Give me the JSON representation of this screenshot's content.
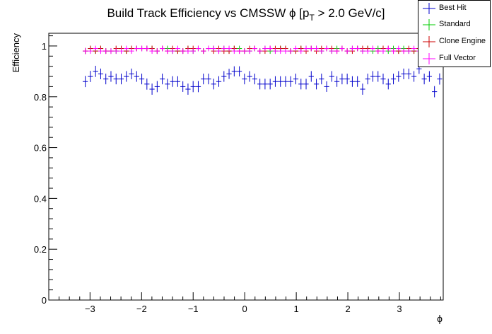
{
  "chart_data": {
    "type": "scatter",
    "title_main": "Build Track Efficiency vs CMSSW ",
    "title_phi": "ϕ",
    "title_bracket_open": " [p",
    "title_subscript": "T",
    "title_rest": " > 2.0 GeV/c]",
    "xlabel": "ϕ",
    "ylabel": "Efficiency",
    "xlim": [
      -3.8,
      3.85
    ],
    "ylim": [
      0,
      1.05
    ],
    "x_ticks": [
      -3,
      -2,
      -1,
      0,
      1,
      2,
      3
    ],
    "x_tick_labels": [
      "−3",
      "−2",
      "−1",
      "0",
      "1",
      "2",
      "3"
    ],
    "y_ticks": [
      0,
      0.2,
      0.4,
      0.6,
      0.8,
      1
    ],
    "y_tick_labels": [
      "0",
      "0.2",
      "0.4",
      "0.6",
      "0.8",
      "1"
    ],
    "bin_width": 0.0996,
    "x_start": -3.092,
    "legend_position": "top-right",
    "series": [
      {
        "name": "Best Hit",
        "color": "#0000cc",
        "values": [
          0.86,
          0.88,
          0.9,
          0.89,
          0.87,
          0.88,
          0.87,
          0.87,
          0.88,
          0.89,
          0.88,
          0.87,
          0.85,
          0.83,
          0.84,
          0.87,
          0.85,
          0.86,
          0.86,
          0.84,
          0.83,
          0.84,
          0.84,
          0.87,
          0.87,
          0.85,
          0.86,
          0.88,
          0.89,
          0.9,
          0.9,
          0.87,
          0.88,
          0.87,
          0.85,
          0.85,
          0.85,
          0.86,
          0.86,
          0.86,
          0.86,
          0.87,
          0.85,
          0.85,
          0.88,
          0.85,
          0.87,
          0.84,
          0.88,
          0.86,
          0.87,
          0.87,
          0.86,
          0.86,
          0.83,
          0.87,
          0.88,
          0.88,
          0.87,
          0.85,
          0.87,
          0.88,
          0.89,
          0.89,
          0.88,
          0.91,
          0.87,
          0.88,
          0.82,
          0.87
        ],
        "errors": [
          0.022,
          0.022,
          0.022,
          0.021,
          0.021,
          0.021,
          0.021,
          0.021,
          0.021,
          0.021,
          0.021,
          0.021,
          0.022,
          0.022,
          0.022,
          0.021,
          0.021,
          0.021,
          0.021,
          0.021,
          0.022,
          0.022,
          0.022,
          0.021,
          0.021,
          0.021,
          0.021,
          0.021,
          0.02,
          0.02,
          0.02,
          0.021,
          0.021,
          0.021,
          0.021,
          0.021,
          0.021,
          0.021,
          0.021,
          0.021,
          0.021,
          0.021,
          0.021,
          0.021,
          0.021,
          0.021,
          0.021,
          0.021,
          0.021,
          0.021,
          0.021,
          0.021,
          0.021,
          0.021,
          0.022,
          0.021,
          0.021,
          0.021,
          0.021,
          0.021,
          0.021,
          0.021,
          0.021,
          0.021,
          0.021,
          0.02,
          0.021,
          0.021,
          0.022,
          0.022
        ]
      },
      {
        "name": "Standard",
        "color": "#00cc00",
        "values": [
          0.98,
          0.99,
          0.98,
          0.99,
          0.98,
          0.98,
          0.98,
          0.99,
          0.98,
          0.99,
          0.99,
          0.99,
          0.99,
          0.99,
          0.98,
          0.99,
          0.99,
          0.98,
          0.98,
          0.98,
          0.99,
          0.98,
          0.99,
          0.98,
          0.99,
          0.99,
          0.98,
          0.99,
          0.98,
          0.99,
          0.99,
          0.98,
          0.98,
          0.99,
          0.98,
          0.99,
          0.98,
          0.98,
          0.99,
          0.99,
          0.98,
          0.98,
          0.99,
          0.99,
          0.99,
          0.99,
          0.98,
          0.99,
          0.98,
          0.99,
          0.99,
          0.98,
          0.99,
          0.99,
          0.98,
          0.99,
          0.98,
          0.99,
          0.99,
          0.98,
          0.99,
          0.98,
          0.99,
          0.98,
          0.98,
          0.99,
          0.98,
          0.99,
          0.99,
          0.99
        ],
        "errors": [
          0.012,
          0.011,
          0.011,
          0.011,
          0.011,
          0.011,
          0.011,
          0.011,
          0.011,
          0.011,
          0.011,
          0.011,
          0.011,
          0.011,
          0.011,
          0.011,
          0.011,
          0.011,
          0.011,
          0.011,
          0.011,
          0.011,
          0.011,
          0.011,
          0.011,
          0.011,
          0.011,
          0.011,
          0.011,
          0.011,
          0.011,
          0.011,
          0.011,
          0.011,
          0.011,
          0.011,
          0.011,
          0.011,
          0.011,
          0.011,
          0.011,
          0.011,
          0.011,
          0.011,
          0.011,
          0.011,
          0.011,
          0.011,
          0.011,
          0.011,
          0.011,
          0.011,
          0.011,
          0.011,
          0.011,
          0.011,
          0.011,
          0.011,
          0.011,
          0.011,
          0.011,
          0.011,
          0.011,
          0.011,
          0.011,
          0.011,
          0.011,
          0.011,
          0.011,
          0.011
        ]
      },
      {
        "name": "Clone Engine",
        "color": "#cc0000",
        "values": [
          0.98,
          0.99,
          0.98,
          0.99,
          0.98,
          0.98,
          0.99,
          0.99,
          0.98,
          0.99,
          0.99,
          0.99,
          0.99,
          0.99,
          0.98,
          0.99,
          0.98,
          0.99,
          0.98,
          0.98,
          0.99,
          0.99,
          0.99,
          0.98,
          0.99,
          0.98,
          0.99,
          0.98,
          0.98,
          0.99,
          0.98,
          0.98,
          0.99,
          0.99,
          0.98,
          0.98,
          0.99,
          0.99,
          0.99,
          0.99,
          0.98,
          0.98,
          0.99,
          0.98,
          0.99,
          0.98,
          0.99,
          0.99,
          0.99,
          0.98,
          0.99,
          0.98,
          0.98,
          0.99,
          0.99,
          0.99,
          0.99,
          0.98,
          0.99,
          0.99,
          0.98,
          0.98,
          0.98,
          0.99,
          0.98,
          0.99,
          0.99,
          0.98,
          0.99,
          0.99
        ],
        "errors": [
          0.012,
          0.011,
          0.011,
          0.011,
          0.011,
          0.011,
          0.011,
          0.011,
          0.011,
          0.011,
          0.011,
          0.011,
          0.011,
          0.011,
          0.011,
          0.011,
          0.011,
          0.011,
          0.011,
          0.011,
          0.011,
          0.011,
          0.011,
          0.011,
          0.011,
          0.011,
          0.011,
          0.011,
          0.011,
          0.011,
          0.011,
          0.011,
          0.011,
          0.011,
          0.011,
          0.011,
          0.011,
          0.011,
          0.011,
          0.011,
          0.011,
          0.011,
          0.011,
          0.011,
          0.011,
          0.011,
          0.011,
          0.011,
          0.011,
          0.011,
          0.011,
          0.011,
          0.011,
          0.011,
          0.011,
          0.011,
          0.011,
          0.011,
          0.011,
          0.011,
          0.011,
          0.011,
          0.011,
          0.011,
          0.011,
          0.011,
          0.011,
          0.011,
          0.011,
          0.011
        ]
      },
      {
        "name": "Full Vector",
        "color": "#ff00ff",
        "values": [
          0.98,
          0.98,
          0.99,
          0.98,
          0.98,
          0.98,
          0.98,
          0.98,
          0.99,
          0.98,
          0.99,
          0.99,
          0.99,
          0.98,
          0.98,
          0.99,
          0.98,
          0.98,
          0.99,
          0.98,
          0.98,
          0.98,
          0.99,
          0.98,
          0.99,
          0.99,
          0.98,
          0.99,
          0.99,
          0.98,
          0.98,
          0.98,
          0.98,
          0.99,
          0.98,
          0.99,
          0.99,
          0.98,
          0.98,
          0.98,
          0.98,
          0.99,
          0.98,
          0.99,
          0.99,
          0.99,
          0.98,
          0.99,
          0.98,
          0.98,
          0.99,
          0.98,
          0.99,
          0.99,
          0.98,
          0.98,
          0.99,
          0.98,
          0.98,
          0.99,
          0.98,
          0.99,
          0.98,
          0.98,
          0.99,
          0.98,
          0.99,
          0.98,
          0.99,
          0.99
        ],
        "errors": [
          0.012,
          0.011,
          0.011,
          0.011,
          0.011,
          0.011,
          0.011,
          0.011,
          0.011,
          0.011,
          0.011,
          0.011,
          0.011,
          0.011,
          0.011,
          0.011,
          0.011,
          0.011,
          0.011,
          0.011,
          0.011,
          0.011,
          0.011,
          0.011,
          0.011,
          0.011,
          0.011,
          0.011,
          0.011,
          0.011,
          0.011,
          0.011,
          0.011,
          0.011,
          0.011,
          0.011,
          0.011,
          0.011,
          0.011,
          0.011,
          0.011,
          0.011,
          0.011,
          0.011,
          0.011,
          0.011,
          0.011,
          0.011,
          0.011,
          0.011,
          0.011,
          0.011,
          0.011,
          0.011,
          0.011,
          0.011,
          0.011,
          0.011,
          0.011,
          0.011,
          0.011,
          0.011,
          0.011,
          0.011,
          0.011,
          0.011,
          0.011,
          0.011,
          0.011,
          0.011
        ]
      }
    ]
  }
}
